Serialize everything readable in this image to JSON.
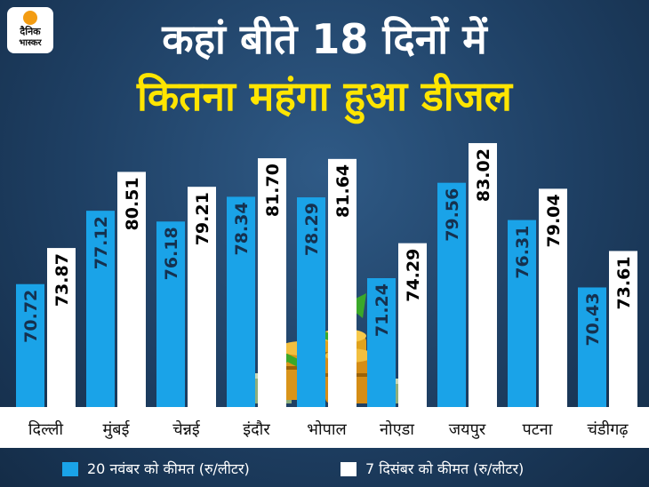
{
  "brand": {
    "line1": "दैनिक",
    "line2": "भास्कर"
  },
  "title": {
    "line1": "कहां बीते 18 दिनों में",
    "line2": "कितना महंगा हुआ डीजल"
  },
  "colors": {
    "series1": "#1aa3e8",
    "series2": "#ffffff",
    "title2": "#ffe500"
  },
  "illustration": {
    "icon": "oil-barrels-rising-arrow-icon"
  },
  "chart_data": {
    "type": "bar",
    "title": "कहां बीते 18 दिनों में कितना महंगा हुआ डीजल",
    "categories": [
      "दिल्ली",
      "मुंबई",
      "चेन्नई",
      "इंदौर",
      "भोपाल",
      "नोएडा",
      "जयपुर",
      "पटना",
      "चंडीगढ़"
    ],
    "series": [
      {
        "name": "20 नवंबर को कीमत (रु/लीटर)",
        "values": [
          70.72,
          77.12,
          76.18,
          78.34,
          78.29,
          71.24,
          79.56,
          76.31,
          70.43
        ]
      },
      {
        "name": "7 दिसंबर को कीमत (रु/लीटर)",
        "values": [
          73.87,
          80.51,
          79.21,
          81.7,
          81.64,
          74.29,
          83.02,
          79.04,
          73.61
        ]
      }
    ],
    "data_labels": {
      "series1": [
        "70.72",
        "77.12",
        "76.18",
        "78.34",
        "78.29",
        "71.24",
        "79.56",
        "76.31",
        "70.43"
      ],
      "series2": [
        "73.87",
        "80.51",
        "79.21",
        "81.70",
        "81.64",
        "74.29",
        "83.02",
        "79.04",
        "73.61"
      ]
    },
    "legend": "bottom",
    "grid": false
  }
}
